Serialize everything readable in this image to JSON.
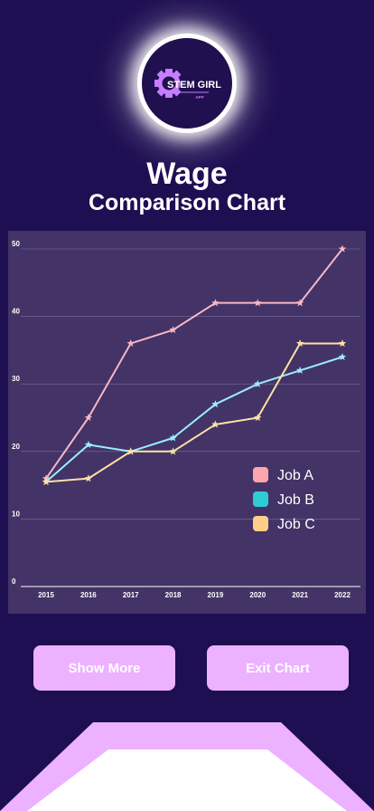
{
  "logo": {
    "name": "STEM GIRL",
    "tag": "APP"
  },
  "header": {
    "title_line1": "Wage",
    "title_line2": "Comparison Chart"
  },
  "chart_data": {
    "type": "line",
    "x": [
      "2015",
      "2016",
      "2017",
      "2018",
      "2019",
      "2020",
      "2021",
      "2022"
    ],
    "series": [
      {
        "name": "Job A",
        "color": "#f8b7c6",
        "values": [
          16,
          25,
          36,
          38,
          42,
          42,
          42,
          50
        ]
      },
      {
        "name": "Job B",
        "color": "#9aeef8",
        "values": [
          15.5,
          21,
          20,
          22,
          27,
          30,
          32,
          34
        ]
      },
      {
        "name": "Job C",
        "color": "#ffe0a6",
        "values": [
          15.5,
          16,
          20,
          20,
          24,
          25,
          36,
          36
        ]
      }
    ],
    "legend_colors": [
      "#ffa5ad",
      "#2fccd6",
      "#ffcf8a"
    ],
    "yticks": [
      "0",
      "10",
      "20",
      "30",
      "40",
      "50"
    ],
    "ylim": [
      0,
      50
    ],
    "grid": true,
    "marker": "star",
    "legend_position": "right"
  },
  "buttons": {
    "show_more": "Show More",
    "exit_chart": "Exit Chart"
  }
}
